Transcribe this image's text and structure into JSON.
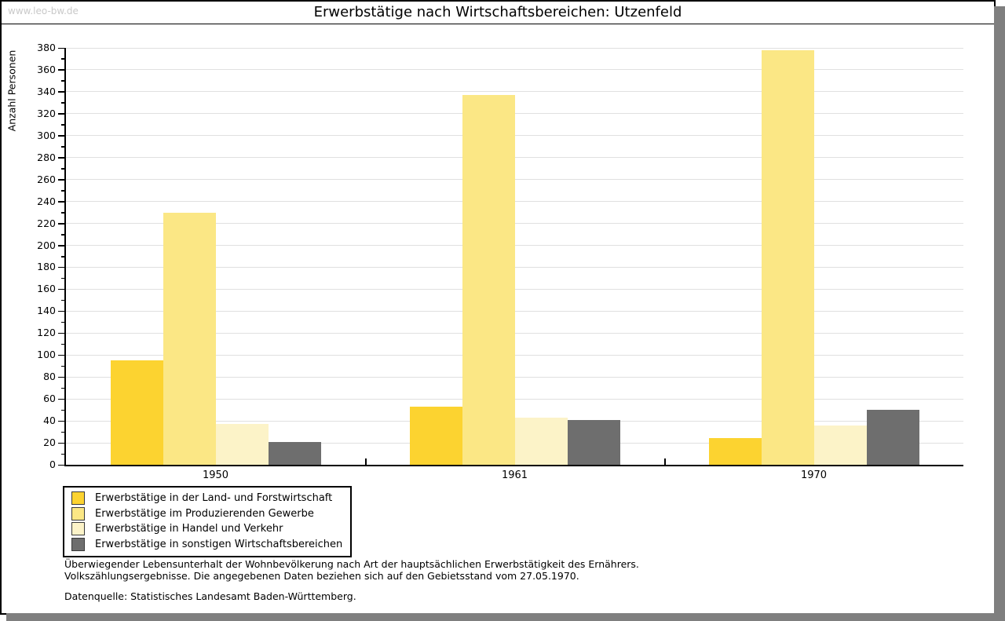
{
  "page": {
    "watermark": "www.leo-bw.de"
  },
  "chart_data": {
    "type": "bar",
    "title": "Erwerbstätige nach Wirtschaftsbereichen: Utzenfeld",
    "xlabel": "",
    "ylabel": "Anzahl Personen",
    "categories": [
      "1950",
      "1961",
      "1970"
    ],
    "series": [
      {
        "name": "Erwerbstätige in der Land- und Forstwirtschaft",
        "color": "#fcd330",
        "values": [
          95,
          53,
          24
        ]
      },
      {
        "name": "Erwerbstätige im Produzierenden Gewerbe",
        "color": "#fbe785",
        "values": [
          230,
          337,
          378
        ]
      },
      {
        "name": "Erwerbstätige in Handel und Verkehr",
        "color": "#fcf3c8",
        "values": [
          37,
          43,
          36
        ]
      },
      {
        "name": "Erwerbstätige in sonstigen Wirtschaftsbereichen",
        "color": "#6e6e6e",
        "values": [
          21,
          41,
          50
        ]
      }
    ],
    "ylim": [
      0,
      380
    ],
    "ytick_step": 20,
    "yminor_step": 10,
    "grid": true,
    "gridline_color": "#e0e0e0",
    "legend_position": "bottom-left"
  },
  "footnotes": {
    "line1": "Überwiegender Lebensunterhalt der Wohnbevölkerung nach Art der hauptsächlichen Erwerbstätigkeit des Ernährers.",
    "line2": "Volkszählungsergebnisse. Die angegebenen Daten beziehen sich auf den Gebietsstand vom 27.05.1970.",
    "source": "Datenquelle: Statistisches Landesamt Baden-Württemberg."
  }
}
